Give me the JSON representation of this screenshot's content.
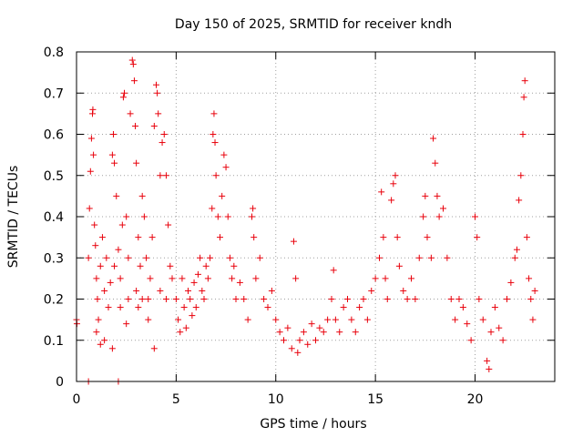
{
  "chart_data": {
    "type": "scatter",
    "title": "Day 150 of 2025, SRMTID for receiver kndh",
    "xlabel": "GPS time / hours",
    "ylabel": "SRMTID / TECUs",
    "xlim": [
      0,
      24
    ],
    "ylim": [
      0,
      0.8
    ],
    "x_ticks": [
      0,
      5,
      10,
      15,
      20
    ],
    "x_tick_labels": [
      "0",
      "5",
      "10",
      "15",
      "20"
    ],
    "y_ticks": [
      0,
      0.1,
      0.2,
      0.3,
      0.4,
      0.5,
      0.6,
      0.7,
      0.8
    ],
    "y_tick_labels": [
      "0",
      "0.1",
      "0.2",
      "0.3",
      "0.4",
      "0.5",
      "0.6",
      "0.7",
      "0.8"
    ],
    "grid": true,
    "marker": "+",
    "marker_color": "#e8000b",
    "series": [
      {
        "name": "SRMTID",
        "points": [
          [
            0.0,
            0.15
          ],
          [
            0.02,
            0.14
          ],
          [
            0.6,
            0.0
          ],
          [
            2.1,
            0.0
          ],
          [
            0.6,
            0.3
          ],
          [
            0.65,
            0.42
          ],
          [
            0.7,
            0.51
          ],
          [
            0.75,
            0.59
          ],
          [
            0.8,
            0.65
          ],
          [
            0.82,
            0.66
          ],
          [
            0.85,
            0.55
          ],
          [
            0.9,
            0.38
          ],
          [
            0.95,
            0.33
          ],
          [
            1.0,
            0.25
          ],
          [
            1.05,
            0.2
          ],
          [
            1.1,
            0.15
          ],
          [
            1.2,
            0.28
          ],
          [
            1.3,
            0.35
          ],
          [
            1.4,
            0.22
          ],
          [
            1.5,
            0.3
          ],
          [
            1.6,
            0.18
          ],
          [
            1.8,
            0.55
          ],
          [
            1.85,
            0.6
          ],
          [
            1.9,
            0.53
          ],
          [
            2.0,
            0.45
          ],
          [
            2.1,
            0.32
          ],
          [
            2.2,
            0.25
          ],
          [
            2.3,
            0.38
          ],
          [
            2.35,
            0.69
          ],
          [
            2.4,
            0.7
          ],
          [
            2.5,
            0.4
          ],
          [
            2.6,
            0.3
          ],
          [
            2.7,
            0.65
          ],
          [
            2.8,
            0.78
          ],
          [
            2.85,
            0.77
          ],
          [
            2.9,
            0.73
          ],
          [
            2.95,
            0.62
          ],
          [
            3.0,
            0.53
          ],
          [
            3.1,
            0.35
          ],
          [
            3.2,
            0.28
          ],
          [
            3.3,
            0.45
          ],
          [
            3.4,
            0.4
          ],
          [
            3.5,
            0.3
          ],
          [
            3.6,
            0.2
          ],
          [
            3.7,
            0.25
          ],
          [
            3.8,
            0.35
          ],
          [
            3.9,
            0.62
          ],
          [
            4.0,
            0.72
          ],
          [
            4.05,
            0.7
          ],
          [
            4.1,
            0.65
          ],
          [
            4.2,
            0.5
          ],
          [
            4.3,
            0.58
          ],
          [
            4.4,
            0.6
          ],
          [
            4.5,
            0.5
          ],
          [
            4.6,
            0.38
          ],
          [
            4.7,
            0.28
          ],
          [
            1.0,
            0.12
          ],
          [
            1.2,
            0.09
          ],
          [
            1.4,
            0.1
          ],
          [
            1.7,
            0.24
          ],
          [
            1.9,
            0.28
          ],
          [
            2.2,
            0.18
          ],
          [
            2.6,
            0.2
          ],
          [
            3.0,
            0.22
          ],
          [
            3.3,
            0.2
          ],
          [
            3.6,
            0.15
          ],
          [
            3.9,
            0.08
          ],
          [
            4.2,
            0.22
          ],
          [
            4.5,
            0.2
          ],
          [
            4.8,
            0.25
          ],
          [
            1.8,
            0.08
          ],
          [
            2.5,
            0.14
          ],
          [
            3.1,
            0.18
          ],
          [
            5.0,
            0.2
          ],
          [
            5.1,
            0.15
          ],
          [
            5.2,
            0.12
          ],
          [
            5.3,
            0.25
          ],
          [
            5.4,
            0.18
          ],
          [
            5.5,
            0.13
          ],
          [
            5.6,
            0.22
          ],
          [
            5.7,
            0.2
          ],
          [
            5.8,
            0.16
          ],
          [
            5.9,
            0.24
          ],
          [
            6.0,
            0.18
          ],
          [
            6.1,
            0.26
          ],
          [
            6.2,
            0.3
          ],
          [
            6.3,
            0.22
          ],
          [
            6.4,
            0.2
          ],
          [
            6.5,
            0.28
          ],
          [
            6.6,
            0.25
          ],
          [
            6.7,
            0.3
          ],
          [
            6.8,
            0.42
          ],
          [
            6.85,
            0.6
          ],
          [
            6.9,
            0.65
          ],
          [
            6.95,
            0.58
          ],
          [
            7.0,
            0.5
          ],
          [
            7.1,
            0.4
          ],
          [
            7.2,
            0.35
          ],
          [
            7.3,
            0.45
          ],
          [
            7.4,
            0.55
          ],
          [
            7.5,
            0.52
          ],
          [
            7.6,
            0.4
          ],
          [
            7.7,
            0.3
          ],
          [
            7.8,
            0.25
          ],
          [
            7.9,
            0.28
          ],
          [
            8.0,
            0.2
          ],
          [
            8.2,
            0.24
          ],
          [
            8.4,
            0.2
          ],
          [
            8.6,
            0.15
          ],
          [
            8.8,
            0.4
          ],
          [
            8.85,
            0.42
          ],
          [
            8.9,
            0.35
          ],
          [
            9.0,
            0.25
          ],
          [
            9.2,
            0.3
          ],
          [
            9.4,
            0.2
          ],
          [
            9.6,
            0.18
          ],
          [
            9.8,
            0.22
          ],
          [
            10.0,
            0.15
          ],
          [
            10.2,
            0.12
          ],
          [
            10.4,
            0.1
          ],
          [
            10.6,
            0.13
          ],
          [
            10.8,
            0.08
          ],
          [
            10.9,
            0.34
          ],
          [
            11.0,
            0.25
          ],
          [
            11.1,
            0.07
          ],
          [
            11.2,
            0.1
          ],
          [
            11.4,
            0.12
          ],
          [
            11.6,
            0.09
          ],
          [
            11.8,
            0.14
          ],
          [
            12.0,
            0.1
          ],
          [
            12.2,
            0.13
          ],
          [
            12.4,
            0.12
          ],
          [
            12.6,
            0.15
          ],
          [
            12.8,
            0.2
          ],
          [
            12.9,
            0.27
          ],
          [
            13.0,
            0.15
          ],
          [
            13.2,
            0.12
          ],
          [
            13.4,
            0.18
          ],
          [
            13.6,
            0.2
          ],
          [
            13.8,
            0.15
          ],
          [
            14.0,
            0.12
          ],
          [
            14.2,
            0.18
          ],
          [
            14.4,
            0.2
          ],
          [
            14.6,
            0.15
          ],
          [
            14.8,
            0.22
          ],
          [
            15.0,
            0.25
          ],
          [
            15.2,
            0.3
          ],
          [
            15.3,
            0.46
          ],
          [
            15.4,
            0.35
          ],
          [
            15.5,
            0.25
          ],
          [
            15.6,
            0.2
          ],
          [
            15.8,
            0.44
          ],
          [
            15.9,
            0.48
          ],
          [
            16.0,
            0.5
          ],
          [
            16.1,
            0.35
          ],
          [
            16.2,
            0.28
          ],
          [
            16.4,
            0.22
          ],
          [
            16.6,
            0.2
          ],
          [
            16.8,
            0.25
          ],
          [
            17.0,
            0.2
          ],
          [
            17.2,
            0.3
          ],
          [
            17.4,
            0.4
          ],
          [
            17.5,
            0.45
          ],
          [
            17.6,
            0.35
          ],
          [
            17.8,
            0.3
          ],
          [
            17.9,
            0.59
          ],
          [
            18.0,
            0.53
          ],
          [
            18.1,
            0.45
          ],
          [
            18.2,
            0.4
          ],
          [
            18.4,
            0.42
          ],
          [
            18.6,
            0.3
          ],
          [
            18.8,
            0.2
          ],
          [
            19.0,
            0.15
          ],
          [
            19.2,
            0.2
          ],
          [
            19.4,
            0.18
          ],
          [
            19.6,
            0.14
          ],
          [
            19.8,
            0.1
          ],
          [
            20.0,
            0.4
          ],
          [
            20.1,
            0.35
          ],
          [
            20.2,
            0.2
          ],
          [
            20.4,
            0.15
          ],
          [
            20.6,
            0.05
          ],
          [
            20.7,
            0.03
          ],
          [
            20.8,
            0.12
          ],
          [
            21.0,
            0.18
          ],
          [
            21.2,
            0.13
          ],
          [
            21.4,
            0.1
          ],
          [
            21.6,
            0.2
          ],
          [
            21.8,
            0.24
          ],
          [
            22.0,
            0.3
          ],
          [
            22.1,
            0.32
          ],
          [
            22.2,
            0.44
          ],
          [
            22.3,
            0.5
          ],
          [
            22.4,
            0.6
          ],
          [
            22.45,
            0.69
          ],
          [
            22.5,
            0.73
          ],
          [
            22.6,
            0.35
          ],
          [
            22.7,
            0.25
          ],
          [
            22.8,
            0.2
          ],
          [
            22.9,
            0.15
          ],
          [
            23.0,
            0.22
          ]
        ]
      }
    ]
  }
}
